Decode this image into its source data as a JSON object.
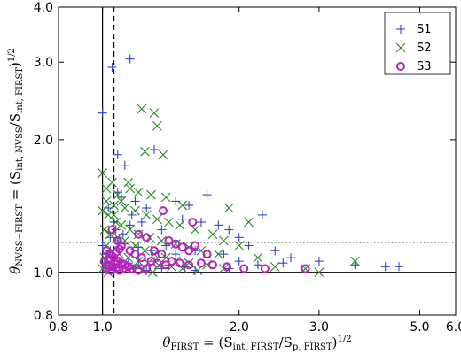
{
  "chart_data": {
    "type": "scatter",
    "title": "",
    "xlabel": "θFIRST = (Sint, FIRST/Sp, FIRST)1/2",
    "ylabel": "θNVSS−FIRST = (Sint, NVSS/Sint, FIRST)1/2",
    "x_scale": "log",
    "y_scale": "log",
    "xlim": [
      0.8,
      6.0
    ],
    "ylim": [
      0.8,
      4.0
    ],
    "x_ticks": [
      0.8,
      1.0,
      2.0,
      3.0,
      5.0,
      6.0
    ],
    "x_tick_labels": [
      "0.8",
      "1.0",
      "2.0",
      "3.0",
      "5.0",
      "6.0"
    ],
    "y_ticks": [
      0.8,
      1.0,
      2.0,
      3.0,
      4.0
    ],
    "y_tick_labels": [
      "0.8",
      "1.0",
      "2.0",
      "3.0",
      "4.0"
    ],
    "reference_lines": {
      "vertical_solid": 1.0,
      "vertical_dashed": 1.06,
      "horizontal_solid": 1.0,
      "horizontal_dotted": 1.17
    },
    "legend_position": "top-right",
    "series": [
      {
        "name": "S1",
        "marker": "plus",
        "color": "#3344cc",
        "points": [
          [
            1.0,
            2.3
          ],
          [
            1.05,
            2.92
          ],
          [
            1.15,
            3.05
          ],
          [
            1.08,
            1.85
          ],
          [
            1.12,
            1.75
          ],
          [
            1.3,
            1.9
          ],
          [
            1.08,
            1.52
          ],
          [
            1.1,
            1.48
          ],
          [
            1.18,
            1.45
          ],
          [
            1.25,
            1.4
          ],
          [
            1.45,
            1.45
          ],
          [
            1.55,
            1.42
          ],
          [
            1.7,
            1.5
          ],
          [
            2.25,
            1.35
          ],
          [
            1.06,
            1.3
          ],
          [
            1.15,
            1.28
          ],
          [
            1.22,
            1.3
          ],
          [
            1.35,
            1.25
          ],
          [
            1.5,
            1.32
          ],
          [
            1.65,
            1.3
          ],
          [
            1.8,
            1.28
          ],
          [
            1.9,
            1.25
          ],
          [
            2.0,
            1.2
          ],
          [
            2.1,
            1.15
          ],
          [
            2.4,
            1.12
          ],
          [
            2.6,
            1.08
          ],
          [
            3.0,
            1.06
          ],
          [
            3.6,
            1.04
          ],
          [
            4.2,
            1.03
          ],
          [
            4.5,
            1.03
          ],
          [
            1.04,
            1.2
          ],
          [
            1.08,
            1.18
          ],
          [
            1.12,
            1.16
          ],
          [
            1.2,
            1.14
          ],
          [
            1.28,
            1.12
          ],
          [
            1.38,
            1.15
          ],
          [
            1.45,
            1.1
          ],
          [
            1.6,
            1.12
          ],
          [
            1.7,
            1.08
          ],
          [
            1.85,
            1.1
          ],
          [
            2.0,
            1.06
          ],
          [
            2.2,
            1.04
          ],
          [
            2.5,
            1.05
          ],
          [
            1.02,
            1.1
          ],
          [
            1.05,
            1.08
          ],
          [
            1.09,
            1.06
          ],
          [
            1.14,
            1.05
          ],
          [
            1.2,
            1.04
          ],
          [
            1.3,
            1.06
          ],
          [
            1.4,
            1.04
          ],
          [
            1.52,
            1.03
          ],
          [
            1.03,
            1.02
          ],
          [
            1.06,
            1.01
          ],
          [
            1.1,
            1.03
          ],
          [
            1.17,
            1.02
          ],
          [
            1.25,
            1.01
          ],
          [
            1.35,
            1.02
          ],
          [
            1.6,
            1.01
          ],
          [
            1.9,
            1.02
          ],
          [
            1.01,
            1.05
          ],
          [
            1.04,
            1.12
          ],
          [
            1.07,
            1.25
          ],
          [
            1.11,
            1.22
          ],
          [
            1.16,
            1.35
          ],
          [
            1.03,
            1.4
          ],
          [
            1.0,
            1.15
          ],
          [
            1.02,
            1.08
          ]
        ]
      },
      {
        "name": "S2",
        "marker": "x",
        "color": "#228822",
        "points": [
          [
            1.22,
            2.35
          ],
          [
            1.3,
            2.3
          ],
          [
            1.32,
            2.15
          ],
          [
            1.24,
            1.88
          ],
          [
            1.36,
            1.85
          ],
          [
            1.0,
            1.68
          ],
          [
            1.05,
            1.6
          ],
          [
            1.02,
            1.55
          ],
          [
            1.08,
            1.5
          ],
          [
            1.15,
            1.55
          ],
          [
            1.2,
            1.52
          ],
          [
            1.28,
            1.5
          ],
          [
            1.38,
            1.48
          ],
          [
            1.5,
            1.42
          ],
          [
            1.9,
            1.4
          ],
          [
            2.1,
            1.3
          ],
          [
            1.02,
            1.45
          ],
          [
            1.06,
            1.42
          ],
          [
            1.12,
            1.4
          ],
          [
            1.18,
            1.38
          ],
          [
            1.25,
            1.35
          ],
          [
            1.32,
            1.32
          ],
          [
            1.4,
            1.3
          ],
          [
            1.48,
            1.28
          ],
          [
            1.6,
            1.25
          ],
          [
            1.75,
            1.22
          ],
          [
            1.85,
            1.18
          ],
          [
            2.0,
            1.15
          ],
          [
            1.03,
            1.35
          ],
          [
            1.07,
            1.3
          ],
          [
            1.1,
            1.28
          ],
          [
            1.15,
            1.25
          ],
          [
            1.2,
            1.22
          ],
          [
            1.27,
            1.2
          ],
          [
            1.35,
            1.18
          ],
          [
            1.45,
            1.16
          ],
          [
            1.55,
            1.14
          ],
          [
            1.65,
            1.12
          ],
          [
            1.8,
            1.1
          ],
          [
            2.2,
            1.08
          ],
          [
            2.4,
            1.03
          ],
          [
            2.8,
            1.02
          ],
          [
            3.0,
            1.0
          ],
          [
            3.6,
            1.06
          ],
          [
            1.01,
            1.25
          ],
          [
            1.04,
            1.22
          ],
          [
            1.08,
            1.2
          ],
          [
            1.12,
            1.18
          ],
          [
            1.18,
            1.15
          ],
          [
            1.24,
            1.12
          ],
          [
            1.3,
            1.1
          ],
          [
            1.38,
            1.08
          ],
          [
            1.45,
            1.06
          ],
          [
            1.55,
            1.05
          ],
          [
            1.7,
            1.04
          ],
          [
            1.85,
            1.02
          ],
          [
            1.02,
            1.15
          ],
          [
            1.05,
            1.12
          ],
          [
            1.09,
            1.1
          ],
          [
            1.14,
            1.08
          ],
          [
            1.2,
            1.06
          ],
          [
            1.26,
            1.05
          ],
          [
            1.33,
            1.04
          ],
          [
            1.42,
            1.03
          ],
          [
            1.5,
            1.02
          ],
          [
            1.62,
            1.01
          ],
          [
            1.01,
            1.08
          ],
          [
            1.04,
            1.05
          ],
          [
            1.07,
            1.04
          ],
          [
            1.11,
            1.03
          ],
          [
            1.16,
            1.02
          ],
          [
            1.22,
            1.01
          ],
          [
            1.29,
            1.0
          ],
          [
            1.0,
            1.02
          ],
          [
            1.03,
            1.0
          ],
          [
            1.06,
            1.35
          ],
          [
            1.1,
            1.45
          ],
          [
            1.14,
            1.6
          ],
          [
            1.0,
            1.38
          ]
        ]
      },
      {
        "name": "S3",
        "marker": "circle",
        "color": "#bb22bb",
        "points": [
          [
            1.36,
            1.38
          ],
          [
            1.58,
            1.3
          ],
          [
            1.05,
            1.25
          ],
          [
            1.2,
            1.22
          ],
          [
            1.25,
            1.2
          ],
          [
            1.4,
            1.18
          ],
          [
            1.45,
            1.16
          ],
          [
            1.5,
            1.14
          ],
          [
            1.55,
            1.12
          ],
          [
            1.6,
            1.15
          ],
          [
            1.7,
            1.1
          ],
          [
            1.3,
            1.12
          ],
          [
            1.35,
            1.1
          ],
          [
            1.08,
            1.18
          ],
          [
            1.1,
            1.15
          ],
          [
            1.15,
            1.12
          ],
          [
            1.18,
            1.1
          ],
          [
            1.22,
            1.08
          ],
          [
            1.28,
            1.06
          ],
          [
            1.32,
            1.05
          ],
          [
            1.38,
            1.04
          ],
          [
            1.42,
            1.06
          ],
          [
            1.48,
            1.05
          ],
          [
            1.55,
            1.04
          ],
          [
            1.65,
            1.05
          ],
          [
            1.75,
            1.04
          ],
          [
            1.88,
            1.03
          ],
          [
            2.05,
            1.02
          ],
          [
            2.28,
            1.02
          ],
          [
            2.8,
            1.02
          ],
          [
            1.02,
            1.12
          ],
          [
            1.04,
            1.1
          ],
          [
            1.06,
            1.08
          ],
          [
            1.08,
            1.06
          ],
          [
            1.1,
            1.05
          ],
          [
            1.12,
            1.04
          ],
          [
            1.14,
            1.03
          ],
          [
            1.16,
            1.02
          ],
          [
            1.2,
            1.01
          ],
          [
            1.25,
            1.02
          ],
          [
            1.01,
            1.06
          ],
          [
            1.03,
            1.04
          ],
          [
            1.05,
            1.03
          ],
          [
            1.07,
            1.02
          ],
          [
            1.09,
            1.01
          ],
          [
            1.11,
            1.02
          ],
          [
            1.02,
            1.02
          ],
          [
            1.04,
            1.01
          ],
          [
            1.06,
            1.05
          ],
          [
            1.03,
            1.07
          ],
          [
            1.05,
            1.09
          ],
          [
            1.07,
            1.11
          ],
          [
            1.09,
            1.13
          ]
        ]
      }
    ]
  }
}
